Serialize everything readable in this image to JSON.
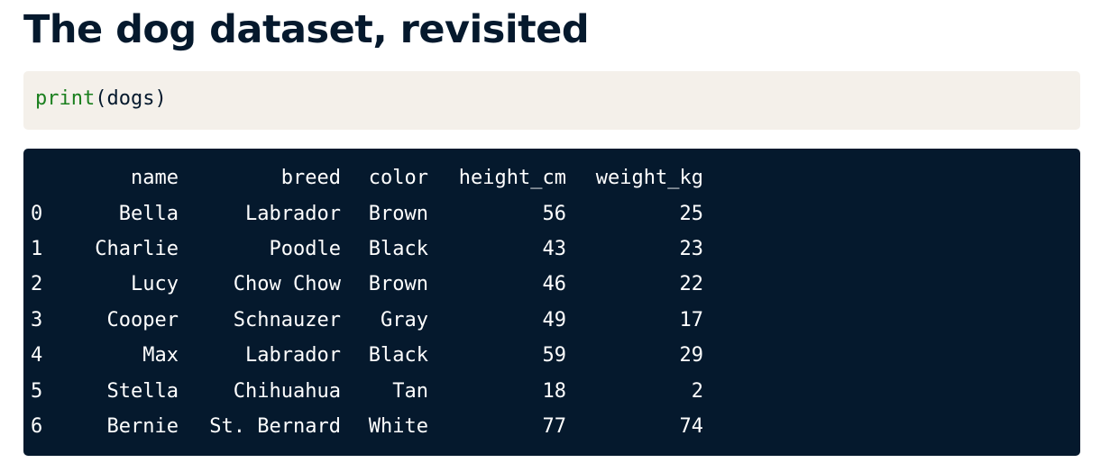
{
  "slide": {
    "title": "The dog dataset, revisited"
  },
  "code": {
    "function": "print",
    "argument": "(dogs)"
  },
  "output": {
    "columns": [
      "name",
      "breed",
      "color",
      "height_cm",
      "weight_kg"
    ],
    "rows": [
      {
        "index": "0",
        "name": "Bella",
        "breed": "Labrador",
        "color": "Brown",
        "height_cm": "56",
        "weight_kg": "25"
      },
      {
        "index": "1",
        "name": "Charlie",
        "breed": "Poodle",
        "color": "Black",
        "height_cm": "43",
        "weight_kg": "23"
      },
      {
        "index": "2",
        "name": "Lucy",
        "breed": "Chow Chow",
        "color": "Brown",
        "height_cm": "46",
        "weight_kg": "22"
      },
      {
        "index": "3",
        "name": "Cooper",
        "breed": "Schnauzer",
        "color": "Gray",
        "height_cm": "49",
        "weight_kg": "17"
      },
      {
        "index": "4",
        "name": "Max",
        "breed": "Labrador",
        "color": "Black",
        "height_cm": "59",
        "weight_kg": "29"
      },
      {
        "index": "5",
        "name": "Stella",
        "breed": "Chihuahua",
        "color": "Tan",
        "height_cm": "18",
        "weight_kg": "2"
      },
      {
        "index": "6",
        "name": "Bernie",
        "breed": "St. Bernard",
        "color": "White",
        "height_cm": "77",
        "weight_kg": "74"
      }
    ]
  },
  "colors": {
    "title": "#05192D",
    "code_background": "#F4F0EA",
    "code_function": "#1A7F1E",
    "output_background": "#05192D",
    "output_text": "#FFFFFF"
  }
}
